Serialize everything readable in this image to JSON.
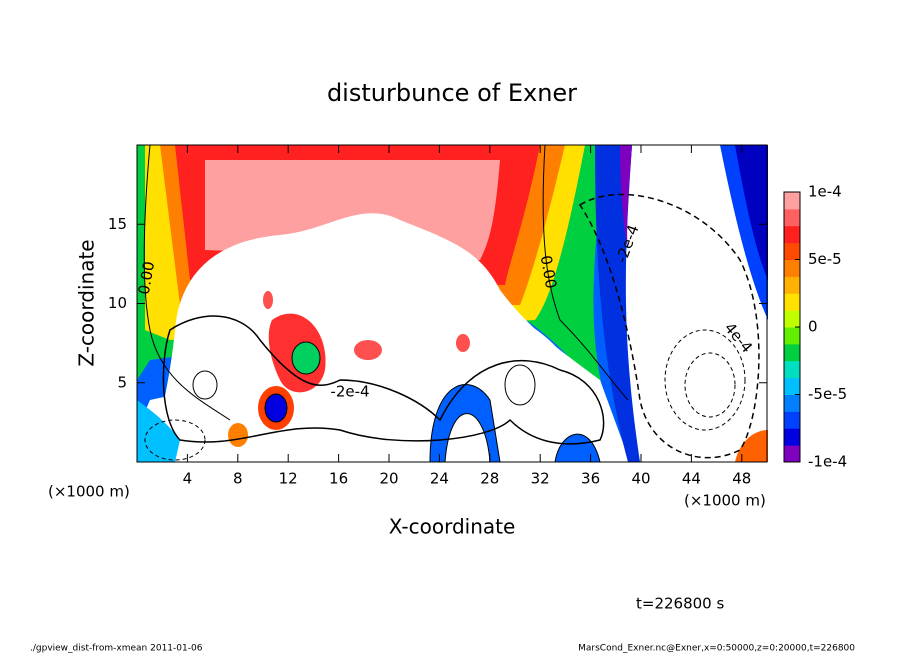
{
  "chart_data": {
    "type": "contour",
    "title": "disturbunce of Exner",
    "x_label": "X-coordinate",
    "y_label": "Z-coordinate",
    "x_unit": "(×1000 m)",
    "y_unit": "(×1000 m)",
    "xlim": [
      0,
      50
    ],
    "ylim": [
      0,
      20
    ],
    "xticks": [
      4,
      8,
      12,
      16,
      20,
      24,
      28,
      32,
      36,
      40,
      44,
      48
    ],
    "yticks": [
      5,
      10,
      15
    ],
    "colorbar": {
      "lim": [
        -0.0001,
        0.0001
      ],
      "ticks": [
        {
          "value": 0.0001,
          "label": "1e-4"
        },
        {
          "value": 5e-05,
          "label": "5e-5"
        },
        0,
        {
          "value": -5e-05,
          "label": "-5e-5"
        },
        {
          "value": -0.0001,
          "label": "-1e-4"
        }
      ],
      "colors": [
        "#8000c0",
        "#0000e0",
        "#0040ff",
        "#0080ff",
        "#00c0ff",
        "#00e0c0",
        "#00d040",
        "#60f000",
        "#c0ff00",
        "#ffe000",
        "#ffb000",
        "#ff7f00",
        "#ff4a00",
        "#ff2020",
        "#ff6060",
        "#ffa0a0"
      ]
    },
    "contour_labels": [
      "0.00",
      "0.00",
      "-2e-4",
      "-2e-4",
      "4e-4"
    ],
    "annotation": "t=226800 s"
  },
  "footer": {
    "left": "./gpview_dist-from-xmean  2011-01-06",
    "right": "MarsCond_Exner.nc@Exner,x=0:50000,z=0:20000,t=226800"
  }
}
